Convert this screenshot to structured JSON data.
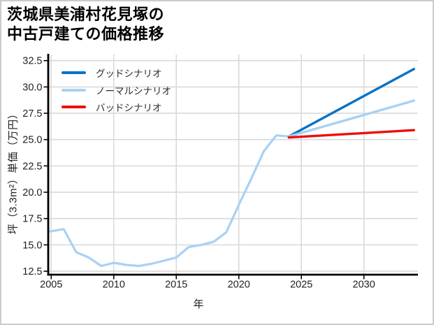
{
  "figure": {
    "title_line1": "茨城県美浦村花見塚の",
    "title_line2": "中古戸建ての価格推移"
  },
  "chart_data": {
    "type": "line",
    "title": "茨城県美浦村花見塚の中古戸建ての価格推移",
    "xlabel": "年",
    "ylabel": "坪（3.3m²）単価（万円）",
    "xlim": [
      2004.76,
      2034.32
    ],
    "ylim": [
      12.17,
      33.08
    ],
    "xticks": [
      2005,
      2010,
      2015,
      2020,
      2025,
      2030
    ],
    "xtick_labels": [
      "2005",
      "2010",
      "2015",
      "2020",
      "2025",
      "2030"
    ],
    "yticks": [
      12.5,
      15.0,
      17.5,
      20.0,
      22.5,
      25.0,
      27.5,
      30.0,
      32.5
    ],
    "ytick_labels": [
      "12.5",
      "15.0",
      "17.5",
      "20.0",
      "22.5",
      "25.0",
      "27.5",
      "30.0",
      "32.5"
    ],
    "grid": true,
    "grid_color": "#d9d9d9",
    "legend_position": "upper-left",
    "series": [
      {
        "id": "historical",
        "label": "",
        "legend": false,
        "color": "#a8d1f5",
        "width": 3.2,
        "x": [
          2004.8,
          2005,
          2006,
          2007,
          2008,
          2009,
          2010,
          2011,
          2012,
          2013,
          2014,
          2015,
          2016,
          2017,
          2018,
          2019,
          2020,
          2021,
          2022,
          2023,
          2024
        ],
        "y": [
          16.25,
          16.3,
          16.5,
          14.3,
          13.8,
          13.0,
          13.3,
          13.1,
          13.0,
          13.2,
          13.5,
          13.8,
          14.8,
          15.0,
          15.3,
          16.2,
          18.8,
          21.3,
          23.9,
          25.4,
          25.3
        ]
      },
      {
        "id": "good-scenario",
        "label": "グッドシナリオ",
        "legend": true,
        "color": "#0872c6",
        "width": 3.4,
        "x": [
          2024,
          2034
        ],
        "y": [
          25.3,
          31.7
        ]
      },
      {
        "id": "normal-scenario",
        "label": "ノーマルシナリオ",
        "legend": true,
        "color": "#a8d1f5",
        "width": 3.4,
        "x": [
          2024,
          2034
        ],
        "y": [
          25.3,
          28.7
        ]
      },
      {
        "id": "bad-scenario",
        "label": "バッドシナリオ",
        "legend": true,
        "color": "#ee0d0d",
        "width": 3.4,
        "x": [
          2024,
          2034
        ],
        "y": [
          25.2,
          25.9
        ]
      }
    ]
  }
}
